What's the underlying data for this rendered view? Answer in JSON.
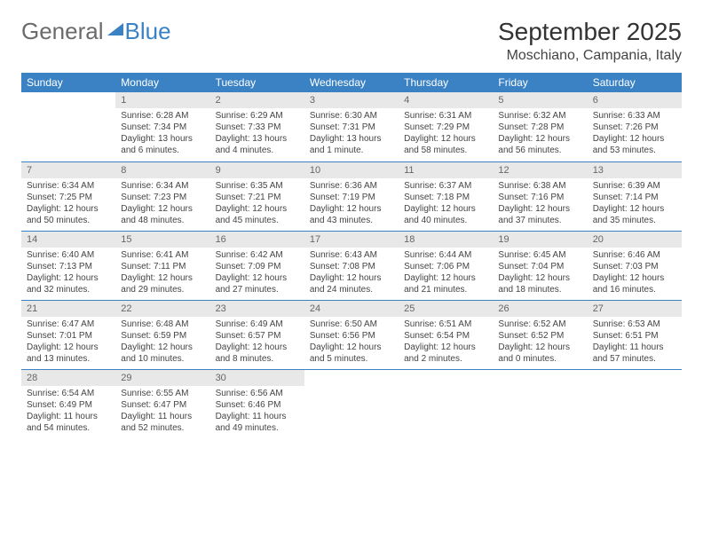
{
  "logo": {
    "word1": "General",
    "word2": "Blue"
  },
  "title": "September 2025",
  "location": "Moschiano, Campania, Italy",
  "colors": {
    "header_bg": "#3b82c4",
    "header_text": "#ffffff",
    "daynum_bg": "#e8e8e8",
    "text": "#444444",
    "rule": "#3b82c4"
  },
  "weekdays": [
    "Sunday",
    "Monday",
    "Tuesday",
    "Wednesday",
    "Thursday",
    "Friday",
    "Saturday"
  ],
  "weeks": [
    [
      {
        "empty": true
      },
      {
        "n": "1",
        "sunrise": "6:28 AM",
        "sunset": "7:34 PM",
        "daylight": "13 hours and 6 minutes."
      },
      {
        "n": "2",
        "sunrise": "6:29 AM",
        "sunset": "7:33 PM",
        "daylight": "13 hours and 4 minutes."
      },
      {
        "n": "3",
        "sunrise": "6:30 AM",
        "sunset": "7:31 PM",
        "daylight": "13 hours and 1 minute."
      },
      {
        "n": "4",
        "sunrise": "6:31 AM",
        "sunset": "7:29 PM",
        "daylight": "12 hours and 58 minutes."
      },
      {
        "n": "5",
        "sunrise": "6:32 AM",
        "sunset": "7:28 PM",
        "daylight": "12 hours and 56 minutes."
      },
      {
        "n": "6",
        "sunrise": "6:33 AM",
        "sunset": "7:26 PM",
        "daylight": "12 hours and 53 minutes."
      }
    ],
    [
      {
        "n": "7",
        "sunrise": "6:34 AM",
        "sunset": "7:25 PM",
        "daylight": "12 hours and 50 minutes."
      },
      {
        "n": "8",
        "sunrise": "6:34 AM",
        "sunset": "7:23 PM",
        "daylight": "12 hours and 48 minutes."
      },
      {
        "n": "9",
        "sunrise": "6:35 AM",
        "sunset": "7:21 PM",
        "daylight": "12 hours and 45 minutes."
      },
      {
        "n": "10",
        "sunrise": "6:36 AM",
        "sunset": "7:19 PM",
        "daylight": "12 hours and 43 minutes."
      },
      {
        "n": "11",
        "sunrise": "6:37 AM",
        "sunset": "7:18 PM",
        "daylight": "12 hours and 40 minutes."
      },
      {
        "n": "12",
        "sunrise": "6:38 AM",
        "sunset": "7:16 PM",
        "daylight": "12 hours and 37 minutes."
      },
      {
        "n": "13",
        "sunrise": "6:39 AM",
        "sunset": "7:14 PM",
        "daylight": "12 hours and 35 minutes."
      }
    ],
    [
      {
        "n": "14",
        "sunrise": "6:40 AM",
        "sunset": "7:13 PM",
        "daylight": "12 hours and 32 minutes."
      },
      {
        "n": "15",
        "sunrise": "6:41 AM",
        "sunset": "7:11 PM",
        "daylight": "12 hours and 29 minutes."
      },
      {
        "n": "16",
        "sunrise": "6:42 AM",
        "sunset": "7:09 PM",
        "daylight": "12 hours and 27 minutes."
      },
      {
        "n": "17",
        "sunrise": "6:43 AM",
        "sunset": "7:08 PM",
        "daylight": "12 hours and 24 minutes."
      },
      {
        "n": "18",
        "sunrise": "6:44 AM",
        "sunset": "7:06 PM",
        "daylight": "12 hours and 21 minutes."
      },
      {
        "n": "19",
        "sunrise": "6:45 AM",
        "sunset": "7:04 PM",
        "daylight": "12 hours and 18 minutes."
      },
      {
        "n": "20",
        "sunrise": "6:46 AM",
        "sunset": "7:03 PM",
        "daylight": "12 hours and 16 minutes."
      }
    ],
    [
      {
        "n": "21",
        "sunrise": "6:47 AM",
        "sunset": "7:01 PM",
        "daylight": "12 hours and 13 minutes."
      },
      {
        "n": "22",
        "sunrise": "6:48 AM",
        "sunset": "6:59 PM",
        "daylight": "12 hours and 10 minutes."
      },
      {
        "n": "23",
        "sunrise": "6:49 AM",
        "sunset": "6:57 PM",
        "daylight": "12 hours and 8 minutes."
      },
      {
        "n": "24",
        "sunrise": "6:50 AM",
        "sunset": "6:56 PM",
        "daylight": "12 hours and 5 minutes."
      },
      {
        "n": "25",
        "sunrise": "6:51 AM",
        "sunset": "6:54 PM",
        "daylight": "12 hours and 2 minutes."
      },
      {
        "n": "26",
        "sunrise": "6:52 AM",
        "sunset": "6:52 PM",
        "daylight": "12 hours and 0 minutes."
      },
      {
        "n": "27",
        "sunrise": "6:53 AM",
        "sunset": "6:51 PM",
        "daylight": "11 hours and 57 minutes."
      }
    ],
    [
      {
        "n": "28",
        "sunrise": "6:54 AM",
        "sunset": "6:49 PM",
        "daylight": "11 hours and 54 minutes."
      },
      {
        "n": "29",
        "sunrise": "6:55 AM",
        "sunset": "6:47 PM",
        "daylight": "11 hours and 52 minutes."
      },
      {
        "n": "30",
        "sunrise": "6:56 AM",
        "sunset": "6:46 PM",
        "daylight": "11 hours and 49 minutes."
      },
      {
        "empty": true
      },
      {
        "empty": true
      },
      {
        "empty": true
      },
      {
        "empty": true
      }
    ]
  ],
  "labels": {
    "sunrise": "Sunrise:",
    "sunset": "Sunset:",
    "daylight": "Daylight:"
  }
}
